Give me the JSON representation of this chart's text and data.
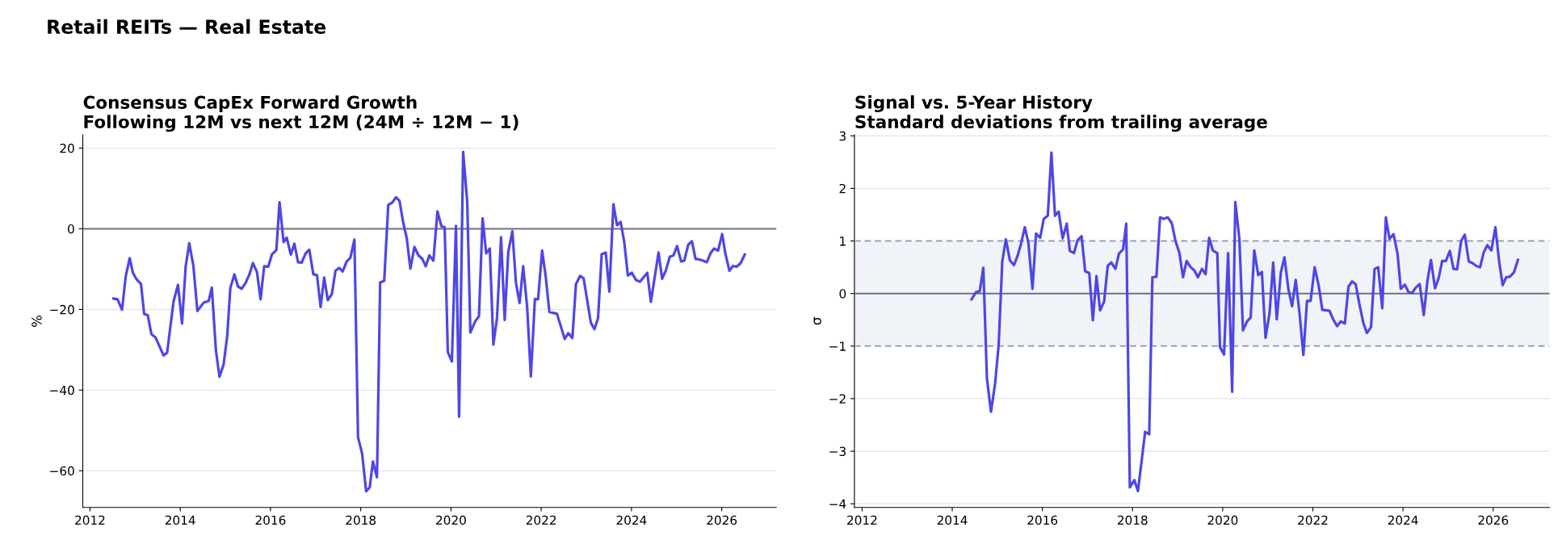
{
  "chart_data": [
    {
      "type": "line",
      "title": "Retail REITs — Real Estate",
      "subtitle": "Consensus CapEx Forward Growth\nFollowing 12M vs next 12M (24M ÷ 12M − 1)",
      "ylabel": "%",
      "grid": "y",
      "marker": "none",
      "line_style": "solid",
      "xlim": [
        2011.84,
        2027.21
      ],
      "xticks": [
        2012,
        2014,
        2016,
        2018,
        2020,
        2022,
        2024,
        2026
      ],
      "ylim": [
        -69.1,
        23.3
      ],
      "yticks": [
        {
          "value": -60,
          "label": "−60"
        },
        {
          "value": -40,
          "label": "−40"
        },
        {
          "value": -20,
          "label": "−20"
        },
        0,
        20
      ],
      "ref_lines": [
        {
          "axis": "y",
          "value": 0,
          "color": "#6b7280",
          "line_style": "solid"
        }
      ],
      "series": [
        {
          "color": "#4f46e5",
          "x": [
            2012.52,
            2012.61,
            2012.71,
            2012.79,
            2012.88,
            2012.95,
            2013.03,
            2013.13,
            2013.2,
            2013.28,
            2013.36,
            2013.45,
            2013.63,
            2013.71,
            2013.85,
            2013.95,
            2014.04,
            2014.12,
            2014.2,
            2014.29,
            2014.38,
            2014.52,
            2014.63,
            2014.7,
            2014.79,
            2014.87,
            2014.96,
            2015.04,
            2015.11,
            2015.2,
            2015.28,
            2015.36,
            2015.45,
            2015.54,
            2015.61,
            2015.7,
            2015.78,
            2015.86,
            2015.95,
            2016.03,
            2016.13,
            2016.2,
            2016.29,
            2016.36,
            2016.45,
            2016.53,
            2016.61,
            2016.69,
            2016.78,
            2016.86,
            2016.95,
            2017.03,
            2017.11,
            2017.19,
            2017.27,
            2017.36,
            2017.44,
            2017.52,
            2017.6,
            2017.69,
            2017.77,
            2017.86,
            2017.94,
            2018.03,
            2018.12,
            2018.2,
            2018.27,
            2018.36,
            2018.43,
            2018.52,
            2018.61,
            2018.7,
            2018.78,
            2018.86,
            2018.94,
            2019.02,
            2019.1,
            2019.19,
            2019.28,
            2019.36,
            2019.44,
            2019.52,
            2019.61,
            2019.7,
            2019.79,
            2019.86,
            2019.93,
            2020.02,
            2020.11,
            2020.18,
            2020.27,
            2020.36,
            2020.43,
            2020.54,
            2020.62,
            2020.7,
            2020.78,
            2020.86,
            2020.94,
            2021.02,
            2021.11,
            2021.19,
            2021.27,
            2021.36,
            2021.44,
            2021.52,
            2021.6,
            2021.69,
            2021.77,
            2021.86,
            2021.93,
            2022.02,
            2022.1,
            2022.18,
            2022.35,
            2022.44,
            2022.52,
            2022.6,
            2022.69,
            2022.77,
            2022.86,
            2022.94,
            2023.1,
            2023.18,
            2023.26,
            2023.34,
            2023.43,
            2023.51,
            2023.6,
            2023.68,
            2023.76,
            2023.84,
            2023.92,
            2024.01,
            2024.1,
            2024.19,
            2024.35,
            2024.43,
            2024.6,
            2024.68,
            2024.76,
            2024.85,
            2024.93,
            2025.01,
            2025.1,
            2025.17,
            2025.26,
            2025.34,
            2025.42,
            2025.5,
            2025.59,
            2025.67,
            2025.76,
            2025.83,
            2025.92,
            2026.01,
            2026.08,
            2026.17,
            2026.25,
            2026.33,
            2026.42,
            2026.51
          ],
          "values": [
            -17.3,
            -17.5,
            -20.1,
            -11.9,
            -7.3,
            -10.9,
            -12.5,
            -13.7,
            -21.1,
            -21.4,
            -26.1,
            -26.9,
            -31.4,
            -30.7,
            -18.1,
            -13.9,
            -23.5,
            -9.3,
            -3.6,
            -9.1,
            -20.4,
            -18.3,
            -17.9,
            -14.6,
            -30.1,
            -36.7,
            -33.7,
            -26.7,
            -14.7,
            -11.3,
            -14.3,
            -14.9,
            -13.4,
            -11.1,
            -8.5,
            -10.7,
            -17.5,
            -9.3,
            -9.4,
            -6.4,
            -5.3,
            6.6,
            -3.3,
            -2.2,
            -6.4,
            -3.7,
            -8.3,
            -8.4,
            -6.1,
            -5.2,
            -11.3,
            -11.5,
            -19.4,
            -12.1,
            -17.7,
            -16.2,
            -10.4,
            -9.7,
            -10.6,
            -8.1,
            -7.2,
            -2.7,
            -51.7,
            -55.7,
            -65.1,
            -64.1,
            -57.7,
            -61.6,
            -13.3,
            -12.9,
            5.9,
            6.5,
            7.8,
            6.9,
            1.6,
            -2.4,
            -9.9,
            -4.5,
            -6.6,
            -7.4,
            -9.3,
            -6.6,
            -7.9,
            4.3,
            0.6,
            0.4,
            -30.6,
            -32.9,
            0.7,
            -46.6,
            19.1,
            6.6,
            -25.7,
            -22.9,
            -21.7,
            2.6,
            -6.1,
            -4.9,
            -28.7,
            -22.1,
            -2.1,
            -22.6,
            -5.7,
            -0.6,
            -13.4,
            -18.4,
            -9.3,
            -19.7,
            -36.6,
            -17.4,
            -17.5,
            -5.4,
            -11.9,
            -20.6,
            -21.1,
            -24.4,
            -27.3,
            -25.9,
            -27.1,
            -13.7,
            -11.7,
            -12.3,
            -23.3,
            -24.9,
            -22.1,
            -6.3,
            -5.9,
            -15.6,
            6.1,
            0.9,
            1.7,
            -3.3,
            -11.6,
            -10.9,
            -12.7,
            -13.1,
            -10.9,
            -18.1,
            -5.9,
            -12.4,
            -10.4,
            -6.9,
            -6.6,
            -4.3,
            -8.1,
            -7.9,
            -3.9,
            -3.1,
            -7.5,
            -7.6,
            -7.9,
            -8.3,
            -5.9,
            -4.9,
            -5.4,
            -1.3,
            -6.1,
            -10.4,
            -9.2,
            -9.4,
            -8.5,
            -6.4
          ]
        }
      ]
    },
    {
      "type": "line",
      "title": "Signal vs. 5-Year History\nStandard deviations from trailing average",
      "ylabel": "σ",
      "grid": "y",
      "marker": "none",
      "line_style": "solid",
      "xlim": [
        2011.83,
        2027.25
      ],
      "xticks": [
        2012,
        2014,
        2016,
        2018,
        2020,
        2022,
        2024,
        2026
      ],
      "ylim": [
        -4.07,
        3.02
      ],
      "yticks": [
        {
          "value": -4,
          "label": "−4"
        },
        {
          "value": -3,
          "label": "−3"
        },
        {
          "value": -2,
          "label": "−2"
        },
        {
          "value": -1,
          "label": "−1"
        },
        0,
        1,
        2,
        3
      ],
      "bands": [
        {
          "axis": "y",
          "from": -1,
          "to": 1,
          "color": "#f0f3f8"
        }
      ],
      "ref_lines": [
        {
          "axis": "y",
          "value": 0,
          "color": "#6b7280",
          "line_style": "solid"
        }
      ],
      "series": [
        {
          "color": "#4f46e5",
          "x": [
            2014.43,
            2014.53,
            2014.61,
            2014.69,
            2014.77,
            2014.86,
            2014.95,
            2015.03,
            2015.11,
            2015.19,
            2015.28,
            2015.37,
            2015.45,
            2015.53,
            2015.61,
            2015.69,
            2015.78,
            2015.86,
            2015.95,
            2016.03,
            2016.12,
            2016.2,
            2016.28,
            2016.36,
            2016.45,
            2016.54,
            2016.61,
            2016.7,
            2016.78,
            2016.87,
            2016.95,
            2017.04,
            2017.12,
            2017.2,
            2017.28,
            2017.37,
            2017.45,
            2017.53,
            2017.62,
            2017.7,
            2017.79,
            2017.86,
            2017.94,
            2018.04,
            2018.12,
            2018.28,
            2018.37,
            2018.44,
            2018.53,
            2018.61,
            2018.69,
            2018.78,
            2018.87,
            2018.95,
            2019.04,
            2019.12,
            2019.2,
            2019.29,
            2019.37,
            2019.45,
            2019.54,
            2019.62,
            2019.7,
            2019.78,
            2019.88,
            2019.94,
            2020.03,
            2020.12,
            2020.21,
            2020.28,
            2020.37,
            2020.45,
            2020.54,
            2020.62,
            2020.7,
            2020.79,
            2020.87,
            2020.95,
            2021.04,
            2021.12,
            2021.2,
            2021.29,
            2021.37,
            2021.46,
            2021.54,
            2021.62,
            2021.71,
            2021.79,
            2021.87,
            2021.95,
            2022.04,
            2022.13,
            2022.21,
            2022.37,
            2022.45,
            2022.54,
            2022.62,
            2022.71,
            2022.79,
            2022.87,
            2022.95,
            2023.03,
            2023.12,
            2023.2,
            2023.29,
            2023.37,
            2023.45,
            2023.54,
            2023.62,
            2023.7,
            2023.79,
            2023.88,
            2023.95,
            2024.04,
            2024.12,
            2024.2,
            2024.29,
            2024.37,
            2024.46,
            2024.54,
            2024.62,
            2024.71,
            2024.79,
            2024.87,
            2024.95,
            2025.04,
            2025.12,
            2025.2,
            2025.29,
            2025.37,
            2025.46,
            2025.54,
            2025.62,
            2025.71,
            2025.79,
            2025.87,
            2025.96,
            2026.05,
            2026.13,
            2026.21,
            2026.29,
            2026.37,
            2026.46,
            2026.55
          ],
          "values": [
            -0.11,
            0.03,
            0.04,
            0.49,
            -1.62,
            -2.25,
            -1.72,
            -0.98,
            0.61,
            1.03,
            0.63,
            0.54,
            0.72,
            0.96,
            1.26,
            0.96,
            0.09,
            1.14,
            1.06,
            1.42,
            1.48,
            2.68,
            1.48,
            1.56,
            1.05,
            1.33,
            0.81,
            0.77,
            1.01,
            1.09,
            0.42,
            0.39,
            -0.51,
            0.33,
            -0.32,
            -0.15,
            0.53,
            0.59,
            0.47,
            0.76,
            0.84,
            1.33,
            -3.69,
            -3.55,
            -3.76,
            -2.63,
            -2.68,
            0.31,
            0.32,
            1.45,
            1.42,
            1.45,
            1.34,
            1.01,
            0.77,
            0.31,
            0.62,
            0.5,
            0.44,
            0.31,
            0.47,
            0.37,
            1.06,
            0.82,
            0.77,
            -1.02,
            -1.16,
            0.77,
            -1.87,
            1.74,
            1.04,
            -0.7,
            -0.53,
            -0.46,
            0.82,
            0.35,
            0.41,
            -0.84,
            -0.37,
            0.59,
            -0.49,
            0.4,
            0.69,
            0.07,
            -0.24,
            0.26,
            -0.42,
            -1.17,
            -0.14,
            -0.14,
            0.5,
            0.15,
            -0.31,
            -0.33,
            -0.49,
            -0.62,
            -0.53,
            -0.57,
            0.13,
            0.23,
            0.18,
            -0.19,
            -0.56,
            -0.75,
            -0.64,
            0.47,
            0.5,
            -0.28,
            1.45,
            1.04,
            1.13,
            0.75,
            0.09,
            0.17,
            0.03,
            0.01,
            0.12,
            0.18,
            -0.41,
            0.23,
            0.64,
            0.1,
            0.29,
            0.62,
            0.62,
            0.81,
            0.47,
            0.46,
            1.0,
            1.12,
            0.61,
            0.58,
            0.53,
            0.5,
            0.78,
            0.92,
            0.82,
            1.26,
            0.63,
            0.16,
            0.31,
            0.32,
            0.4,
            0.64
          ]
        }
      ]
    }
  ]
}
